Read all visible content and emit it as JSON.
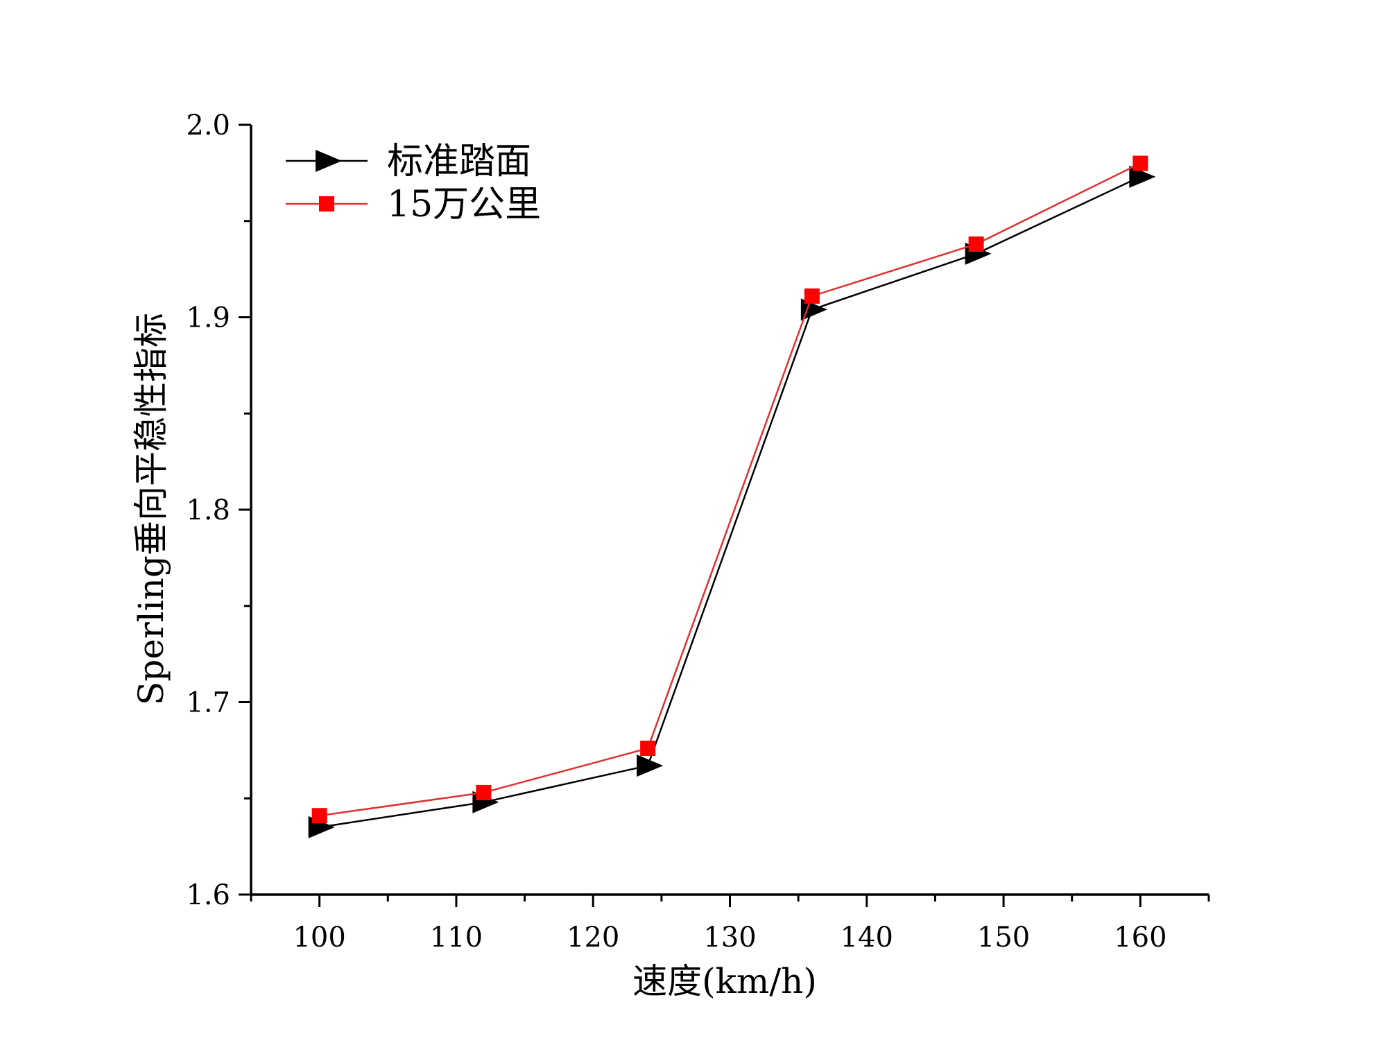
{
  "chart_data": {
    "type": "line",
    "title": "",
    "xlabel": "速度(km/h)",
    "ylabel": "Sperling垂向平稳性指标",
    "xlim": [
      95,
      165
    ],
    "ylim": [
      1.6,
      2.0
    ],
    "x_ticks": [
      100,
      110,
      120,
      130,
      140,
      150,
      160
    ],
    "x_tick_labels": [
      "100",
      "110",
      "120",
      "130",
      "140",
      "150",
      "160"
    ],
    "y_ticks": [
      1.6,
      1.7,
      1.8,
      1.9,
      2.0
    ],
    "y_tick_labels": [
      "1.6",
      "1.7",
      "1.8",
      "1.9",
      "2.0"
    ],
    "grid": false,
    "legend_position": "top-left",
    "x": [
      100,
      112,
      124,
      136,
      148,
      160
    ],
    "series": [
      {
        "name": "标准踏面",
        "color": "#000000",
        "marker": "right-triangle",
        "values": [
          1.635,
          1.648,
          1.667,
          1.904,
          1.933,
          1.973
        ]
      },
      {
        "name": "15万公里",
        "color": "#ff0000",
        "line_color": "#e03030",
        "marker": "square",
        "values": [
          1.641,
          1.653,
          1.676,
          1.911,
          1.938,
          1.98
        ]
      }
    ]
  }
}
